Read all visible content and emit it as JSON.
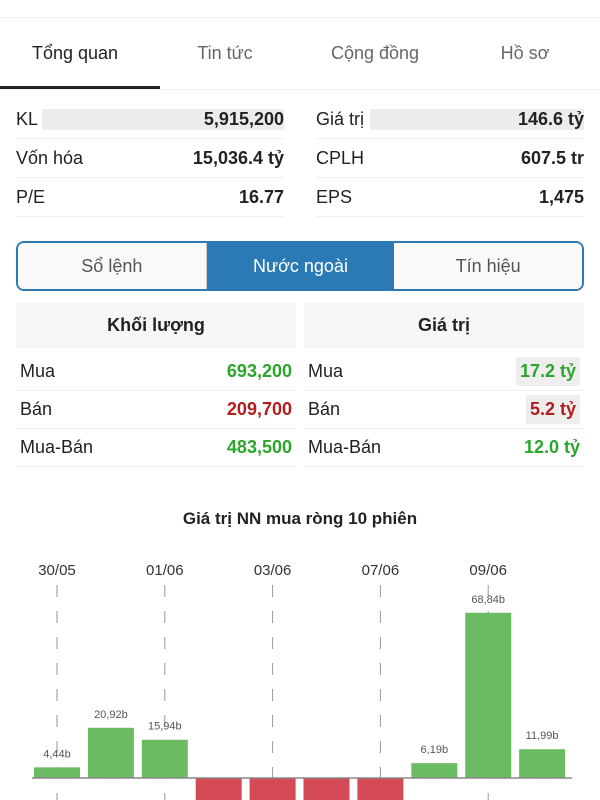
{
  "tabs": [
    {
      "label": "Tổng quan",
      "active": true
    },
    {
      "label": "Tin tức"
    },
    {
      "label": "Cộng đồng"
    },
    {
      "label": "Hồ sơ"
    }
  ],
  "stats": {
    "left": [
      {
        "label": "KL",
        "value": "5,915,200"
      },
      {
        "label": "Vốn hóa",
        "value": "15,036.4 tỷ"
      },
      {
        "label": "P/E",
        "value": "16.77"
      }
    ],
    "right": [
      {
        "label": "Giá trị",
        "value": "146.6 tỷ"
      },
      {
        "label": "CPLH",
        "value": "607.5 tr"
      },
      {
        "label": "EPS",
        "value": "1,475"
      }
    ]
  },
  "segment": [
    {
      "label": "Sổ lệnh"
    },
    {
      "label": "Nước ngoài",
      "active": true
    },
    {
      "label": "Tín hiệu"
    }
  ],
  "foreign": {
    "volume": {
      "header": "Khối lượng",
      "rows": [
        {
          "label": "Mua",
          "value": "693,200",
          "color": "green"
        },
        {
          "label": "Bán",
          "value": "209,700",
          "color": "red"
        },
        {
          "label": "Mua-Bán",
          "value": "483,500",
          "color": "green"
        }
      ]
    },
    "value": {
      "header": "Giá trị",
      "rows": [
        {
          "label": "Mua",
          "value": "17.2 tỷ",
          "color": "green"
        },
        {
          "label": "Bán",
          "value": "5.2 tỷ",
          "color": "red"
        },
        {
          "label": "Mua-Bán",
          "value": "12.0 tỷ",
          "color": "green"
        }
      ]
    }
  },
  "chart_data": {
    "type": "bar",
    "title": "Giá trị NN mua ròng 10 phiên",
    "date_ticks": [
      "30/05",
      "01/06",
      "03/06",
      "07/06",
      "09/06"
    ],
    "values": [
      4.44,
      20.92,
      15.94,
      null,
      null,
      null,
      null,
      6.19,
      68.84,
      11.99
    ],
    "labels": [
      "4,44b",
      "20,92b",
      "15,94b",
      "",
      "",
      "",
      "",
      "6,19b",
      "68,84b",
      "11,99b"
    ],
    "signs": [
      "+",
      "+",
      "+",
      "-",
      "-",
      "-",
      "-",
      "+",
      "+",
      "+"
    ],
    "colors": {
      "positive": "#6bbb63",
      "negative": "#d44a57"
    },
    "grid": "vertical dashed at date ticks"
  }
}
